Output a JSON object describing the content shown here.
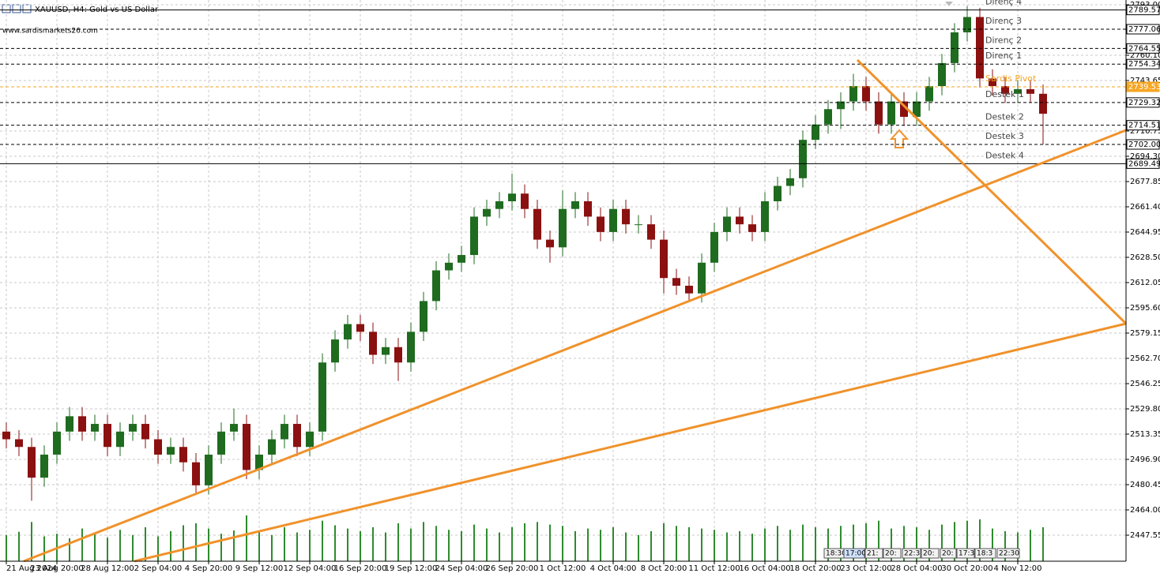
{
  "chart_data": {
    "type": "candlestick",
    "title": "XAUUSD, H4:  Gold vs US Dollar",
    "subtitle": "www.sardismarkets26.com",
    "up_color": "#1f6b1f",
    "down_color": "#8b1010",
    "volume_color": "#2e8b2e",
    "grid": true,
    "ylim": [
      2430.58,
      2796.08
    ],
    "yticks": [
      {
        "value": 2793.0,
        "label": "2793.00"
      },
      {
        "value": 2760.1,
        "label": "2760.10"
      },
      {
        "value": 2743.65,
        "label": "2743.65"
      },
      {
        "value": 2710.75,
        "label": "2710.75"
      },
      {
        "value": 2694.3,
        "label": "2694.30"
      },
      {
        "value": 2677.85,
        "label": "2677.85"
      },
      {
        "value": 2661.4,
        "label": "2661.40"
      },
      {
        "value": 2644.95,
        "label": "2644.95"
      },
      {
        "value": 2628.5,
        "label": "2628.50"
      },
      {
        "value": 2612.05,
        "label": "2612.05"
      },
      {
        "value": 2595.6,
        "label": "2595.60"
      },
      {
        "value": 2579.15,
        "label": "2579.15"
      },
      {
        "value": 2562.7,
        "label": "2562.70"
      },
      {
        "value": 2546.25,
        "label": "2546.25"
      },
      {
        "value": 2529.8,
        "label": "2529.80"
      },
      {
        "value": 2513.35,
        "label": "2513.35"
      },
      {
        "value": 2496.9,
        "label": "2496.90"
      },
      {
        "value": 2480.45,
        "label": "2480.45"
      },
      {
        "value": 2464.0,
        "label": "2464.00"
      },
      {
        "value": 2447.55,
        "label": "2447.55"
      }
    ],
    "categories": [
      "21 Aug 2024",
      null,
      null,
      null,
      "23 Aug 20:00",
      null,
      null,
      null,
      "28 Aug 12:00",
      null,
      null,
      null,
      "2 Sep 04:00",
      null,
      null,
      null,
      "4 Sep 20:00",
      null,
      null,
      null,
      "9 Sep 12:00",
      null,
      null,
      null,
      "12 Sep 04:00",
      null,
      null,
      null,
      "16 Sep 20:00",
      null,
      null,
      null,
      "19 Sep 12:00",
      null,
      null,
      null,
      "24 Sep 04:00",
      null,
      null,
      null,
      "26 Sep 20:00",
      null,
      null,
      null,
      "1 Oct 12:00",
      null,
      null,
      null,
      "4 Oct 04:00",
      null,
      null,
      null,
      "8 Oct 20:00",
      null,
      null,
      null,
      "11 Oct 12:00",
      null,
      null,
      null,
      "16 Oct 04:00",
      null,
      null,
      null,
      "18 Oct 20:00",
      null,
      null,
      null,
      "23 Oct 12:00",
      null,
      null,
      null,
      "28 Oct 04:00",
      null,
      null,
      null,
      "30 Oct 20:00",
      null,
      null,
      null,
      "4 Nov 12:00",
      null,
      null
    ],
    "open": [
      2515,
      2510,
      2505,
      2485,
      2500,
      2515,
      2525,
      2515,
      2520,
      2505,
      2515,
      2520,
      2510,
      2500,
      2505,
      2495,
      2480,
      2500,
      2515,
      2520,
      2490,
      2500,
      2510,
      2520,
      2505,
      2515,
      2560,
      2575,
      2585,
      2580,
      2565,
      2570,
      2560,
      2580,
      2600,
      2620,
      2625,
      2630,
      2655,
      2660,
      2665,
      2670,
      2660,
      2640,
      2635,
      2660,
      2665,
      2655,
      2645,
      2660,
      2650,
      2650,
      2640,
      2615,
      2610,
      2605,
      2625,
      2645,
      2655,
      2650,
      2645,
      2665,
      2675,
      2680,
      2705,
      2715,
      2725,
      2730,
      2740,
      2730,
      2715,
      2730,
      2720,
      2730,
      2740,
      2755,
      2775,
      2785,
      2745,
      2740,
      2735,
      2738,
      2735
    ],
    "high": [
      2521,
      2516,
      2511,
      2506,
      2521,
      2531,
      2531,
      2526,
      2526,
      2521,
      2526,
      2526,
      2516,
      2511,
      2511,
      2501,
      2506,
      2521,
      2530,
      2526,
      2506,
      2516,
      2526,
      2526,
      2521,
      2566,
      2581,
      2591,
      2591,
      2586,
      2576,
      2576,
      2586,
      2606,
      2626,
      2631,
      2636,
      2661,
      2666,
      2671,
      2683,
      2676,
      2666,
      2646,
      2672,
      2671,
      2671,
      2661,
      2666,
      2666,
      2656,
      2656,
      2646,
      2621,
      2616,
      2631,
      2651,
      2661,
      2661,
      2656,
      2671,
      2681,
      2686,
      2711,
      2721,
      2731,
      2736,
      2748,
      2746,
      2736,
      2736,
      2736,
      2736,
      2746,
      2761,
      2781,
      2792,
      2791,
      2751,
      2746,
      2744,
      2744,
      2741
    ],
    "low": [
      2504,
      2499,
      2470,
      2479,
      2494,
      2509,
      2509,
      2509,
      2499,
      2499,
      2509,
      2504,
      2494,
      2494,
      2489,
      2474,
      2474,
      2494,
      2509,
      2484,
      2484,
      2494,
      2504,
      2499,
      2499,
      2509,
      2554,
      2569,
      2574,
      2559,
      2559,
      2548,
      2554,
      2574,
      2594,
      2614,
      2619,
      2624,
      2649,
      2654,
      2659,
      2654,
      2634,
      2625,
      2629,
      2654,
      2649,
      2639,
      2639,
      2644,
      2644,
      2634,
      2605,
      2604,
      2600,
      2599,
      2619,
      2639,
      2644,
      2639,
      2639,
      2659,
      2669,
      2674,
      2699,
      2709,
      2712,
      2724,
      2724,
      2709,
      2709,
      2714,
      2714,
      2724,
      2734,
      2749,
      2769,
      2739,
      2734,
      2729,
      2729,
      2729,
      2702
    ],
    "close": [
      2510,
      2505,
      2485,
      2500,
      2515,
      2525,
      2515,
      2520,
      2505,
      2515,
      2520,
      2510,
      2500,
      2505,
      2495,
      2480,
      2500,
      2515,
      2520,
      2490,
      2500,
      2510,
      2520,
      2505,
      2515,
      2560,
      2575,
      2585,
      2580,
      2565,
      2570,
      2560,
      2580,
      2600,
      2620,
      2625,
      2630,
      2655,
      2660,
      2665,
      2670,
      2660,
      2640,
      2635,
      2660,
      2665,
      2655,
      2645,
      2660,
      2650,
      2650,
      2640,
      2615,
      2610,
      2605,
      2625,
      2645,
      2655,
      2650,
      2645,
      2665,
      2675,
      2680,
      2705,
      2715,
      2725,
      2730,
      2740,
      2730,
      2715,
      2730,
      2720,
      2730,
      2740,
      2755,
      2775,
      2785,
      2745,
      2740,
      2735,
      2738,
      2735,
      2722
    ],
    "volume": [
      40,
      45,
      60,
      38,
      42,
      35,
      50,
      44,
      36,
      48,
      40,
      52,
      38,
      46,
      55,
      58,
      50,
      42,
      47,
      70,
      45,
      40,
      52,
      44,
      48,
      62,
      55,
      50,
      46,
      52,
      44,
      58,
      50,
      60,
      54,
      48,
      46,
      56,
      50,
      44,
      52,
      58,
      60,
      56,
      54,
      46,
      50,
      48,
      52,
      44,
      40,
      46,
      58,
      54,
      52,
      50,
      48,
      44,
      46,
      42,
      50,
      54,
      48,
      56,
      52,
      50,
      54,
      56,
      58,
      62,
      50,
      54,
      52,
      48,
      56,
      60,
      62,
      64,
      50,
      46,
      44,
      48,
      52
    ],
    "levels": [
      {
        "name": "Direnç 4",
        "value": 2789.57,
        "label": "2789.57",
        "style": "solid",
        "color": "#000000"
      },
      {
        "name": "Direnç 3",
        "value": 2777.06,
        "label": "2777.06",
        "style": "dashed",
        "color": "#000000"
      },
      {
        "name": "Direnç 2",
        "value": 2764.55,
        "label": "2764.55",
        "style": "dashed",
        "color": "#000000"
      },
      {
        "name": "Direnç 1",
        "value": 2754.34,
        "label": "2754.34",
        "style": "dashed",
        "color": "#000000"
      },
      {
        "name": "Sardis Pivot",
        "value": 2739.53,
        "label": "2739.53",
        "style": "dashed",
        "color": "#f5a623"
      },
      {
        "name": "Destek 1",
        "value": 2729.32,
        "label": "2729.32",
        "style": "dashed",
        "color": "#000000"
      },
      {
        "name": "Destek 2",
        "value": 2714.51,
        "label": "2714.51",
        "style": "dashed",
        "color": "#000000"
      },
      {
        "name": "Destek 3",
        "value": 2702.0,
        "label": "2702.00",
        "style": "dashed",
        "color": "#000000"
      },
      {
        "name": "Destek 4",
        "value": 2689.49,
        "label": "2689.49",
        "style": "solid",
        "color": "#000000"
      }
    ],
    "trendlines": [
      {
        "color": "#f0922b",
        "points": [
          [
            1.375,
            2430.58
          ],
          [
            88.56,
            2711.26
          ]
        ]
      },
      {
        "color": "#f0922b",
        "points": [
          [
            10.125,
            2430.58
          ],
          [
            88.56,
            2585.32
          ]
        ]
      },
      {
        "color": "#f0922b",
        "points": [
          [
            67.31,
            2757.02
          ],
          [
            88.56,
            2585.32
          ]
        ]
      }
    ],
    "time_tags": [
      "18:30",
      "17:00",
      "21:",
      "20:",
      "22:3",
      "20:",
      "20:",
      "17:3",
      "18:3",
      "22:30"
    ]
  }
}
